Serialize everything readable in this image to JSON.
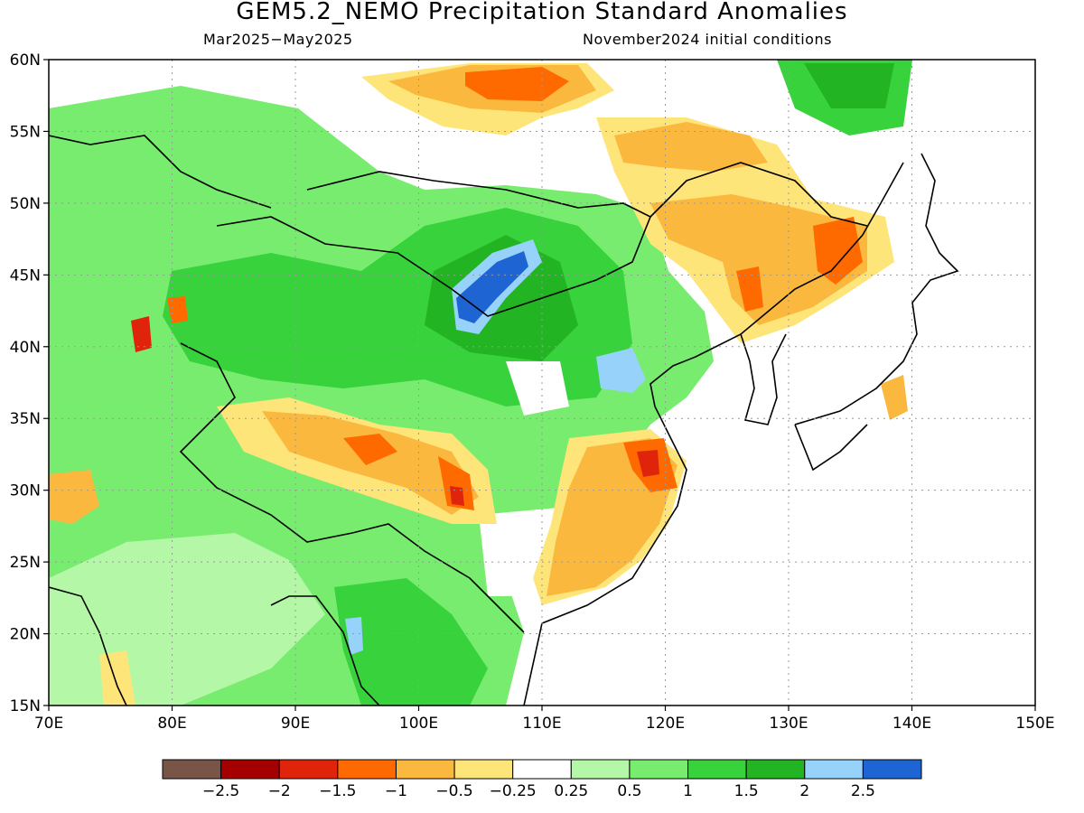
{
  "title": "GEM5.2_NEMO Precipitation Standard Anomalies",
  "subtitle_left": "Mar2025−May2025",
  "subtitle_right": "November2024 initial conditions",
  "map": {
    "lon_range": [
      70,
      150
    ],
    "lat_range": [
      15,
      60
    ],
    "lon_ticks": [
      "70E",
      "80E",
      "90E",
      "100E",
      "110E",
      "120E",
      "130E",
      "140E",
      "150E"
    ],
    "lat_ticks": [
      "15N",
      "20N",
      "25N",
      "30N",
      "35N",
      "40N",
      "45N",
      "50N",
      "55N",
      "60N"
    ]
  },
  "legend": {
    "colors": [
      "#795548",
      "#a50000",
      "#e0240b",
      "#ff6a00",
      "#fbb83f",
      "#fde57a",
      "#ffffff",
      "#b4f7a6",
      "#78ec6e",
      "#37d23c",
      "#22b422",
      "#96d2fa",
      "#1e64d2"
    ],
    "labels": [
      "−2.5",
      "−2",
      "−1.5",
      "−1",
      "−0.5",
      "−0.25",
      "0.25",
      "0.5",
      "1",
      "1.5",
      "2",
      "2.5"
    ]
  }
}
